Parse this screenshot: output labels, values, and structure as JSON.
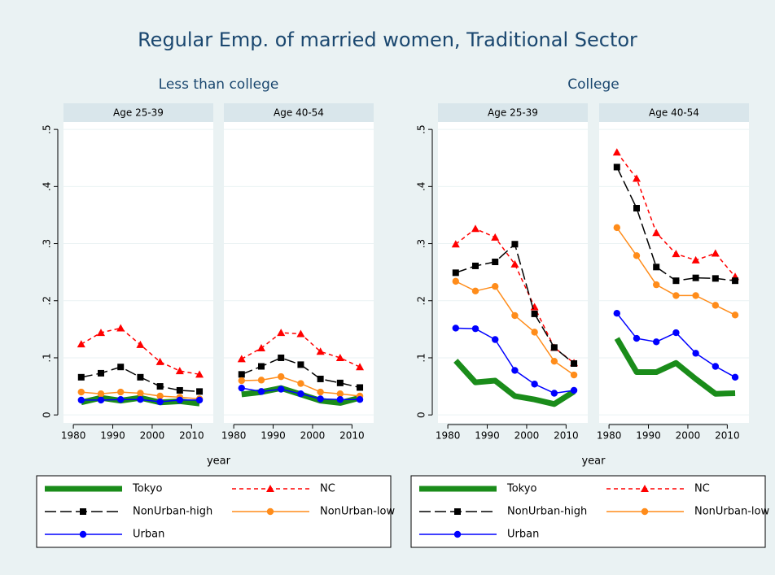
{
  "title": "Regular Emp. of married women, Traditional Sector",
  "groups": [
    {
      "title": "Less than college",
      "x_label": "year"
    },
    {
      "title": "College",
      "x_label": "year"
    }
  ],
  "chart_data": [
    {
      "type": "line",
      "title": "Age 25-39",
      "x": [
        1982,
        1987,
        1992,
        1997,
        2002,
        2007,
        2012
      ],
      "xlim": [
        1977.5,
        2015.5
      ],
      "xticks": [
        1980,
        1990,
        2000,
        2010
      ],
      "ylim": [
        -0.014,
        0.513
      ],
      "yticks": [
        0,
        {
          "value": 0.1,
          "label": ".1"
        },
        {
          "value": 0.2,
          "label": ".2"
        },
        {
          "value": 0.3,
          "label": ".3"
        },
        {
          "value": 0.4,
          "label": ".4"
        },
        {
          "value": 0.5,
          "label": ".5"
        }
      ],
      "grid": true,
      "series": [
        {
          "name": "Tokyo",
          "color": "#1a8c1a",
          "values": [
            0.022,
            0.03,
            0.025,
            0.03,
            0.022,
            0.024,
            0.02
          ]
        },
        {
          "name": "NC",
          "color": "#ff0000",
          "values": [
            0.124,
            0.144,
            0.152,
            0.123,
            0.093,
            0.077,
            0.071
          ]
        },
        {
          "name": "NonUrban-high",
          "color": "#000000",
          "values": [
            0.066,
            0.073,
            0.084,
            0.066,
            0.05,
            0.043,
            0.041
          ]
        },
        {
          "name": "NonUrban-low",
          "color": "#ff8c1a",
          "values": [
            0.04,
            0.037,
            0.04,
            0.038,
            0.033,
            0.031,
            0.028
          ]
        },
        {
          "name": "Urban",
          "color": "#0000ff",
          "values": [
            0.026,
            0.026,
            0.027,
            0.027,
            0.023,
            0.026,
            0.026
          ]
        }
      ]
    },
    {
      "type": "line",
      "title": "Age 40-54",
      "x": [
        1982,
        1987,
        1992,
        1997,
        2002,
        2007,
        2012
      ],
      "xlim": [
        1977.5,
        2015.5
      ],
      "xticks": [
        1980,
        1990,
        2000,
        2010
      ],
      "ylim": [
        -0.014,
        0.513
      ],
      "yticks": [
        0,
        {
          "value": 0.1,
          "label": ".1"
        },
        {
          "value": 0.2,
          "label": ".2"
        },
        {
          "value": 0.3,
          "label": ".3"
        },
        {
          "value": 0.4,
          "label": ".4"
        },
        {
          "value": 0.5,
          "label": ".5"
        }
      ],
      "grid": true,
      "series": [
        {
          "name": "Tokyo",
          "color": "#1a8c1a",
          "values": [
            0.036,
            0.04,
            0.047,
            0.036,
            0.025,
            0.021,
            0.03
          ]
        },
        {
          "name": "NC",
          "color": "#ff0000",
          "values": [
            0.098,
            0.117,
            0.144,
            0.142,
            0.111,
            0.1,
            0.084
          ]
        },
        {
          "name": "NonUrban-high",
          "color": "#000000",
          "values": [
            0.071,
            0.085,
            0.1,
            0.088,
            0.063,
            0.056,
            0.048
          ]
        },
        {
          "name": "NonUrban-low",
          "color": "#ff8c1a",
          "values": [
            0.06,
            0.061,
            0.067,
            0.055,
            0.04,
            0.037,
            0.033
          ]
        },
        {
          "name": "Urban",
          "color": "#0000ff",
          "values": [
            0.047,
            0.041,
            0.045,
            0.037,
            0.028,
            0.027,
            0.027
          ]
        }
      ]
    },
    {
      "type": "line",
      "title": "Age 25-39",
      "x": [
        1982,
        1987,
        1992,
        1997,
        2002,
        2007,
        2012
      ],
      "xlim": [
        1977.5,
        2015.5
      ],
      "xticks": [
        1980,
        1990,
        2000,
        2010
      ],
      "ylim": [
        -0.014,
        0.513
      ],
      "yticks": [
        0,
        {
          "value": 0.1,
          "label": ".1"
        },
        {
          "value": 0.2,
          "label": ".2"
        },
        {
          "value": 0.3,
          "label": ".3"
        },
        {
          "value": 0.4,
          "label": ".4"
        },
        {
          "value": 0.5,
          "label": ".5"
        }
      ],
      "grid": true,
      "series": [
        {
          "name": "Tokyo",
          "color": "#1a8c1a",
          "values": [
            0.095,
            0.057,
            0.06,
            0.033,
            0.027,
            0.019,
            0.041
          ]
        },
        {
          "name": "NC",
          "color": "#ff0000",
          "values": [
            0.299,
            0.326,
            0.311,
            0.264,
            0.189,
            0.118,
            0.091
          ]
        },
        {
          "name": "NonUrban-high",
          "color": "#000000",
          "values": [
            0.249,
            0.261,
            0.268,
            0.299,
            0.177,
            0.118,
            0.09
          ]
        },
        {
          "name": "NonUrban-low",
          "color": "#ff8c1a",
          "values": [
            0.234,
            0.217,
            0.225,
            0.174,
            0.145,
            0.094,
            0.07
          ]
        },
        {
          "name": "Urban",
          "color": "#0000ff",
          "values": [
            0.152,
            0.151,
            0.132,
            0.078,
            0.054,
            0.038,
            0.043
          ]
        }
      ]
    },
    {
      "type": "line",
      "title": "Age 40-54",
      "x": [
        1982,
        1987,
        1992,
        1997,
        2002,
        2007,
        2012
      ],
      "xlim": [
        1977.5,
        2015.5
      ],
      "xticks": [
        1980,
        1990,
        2000,
        2010
      ],
      "ylim": [
        -0.014,
        0.513
      ],
      "yticks": [
        0,
        {
          "value": 0.1,
          "label": ".1"
        },
        {
          "value": 0.2,
          "label": ".2"
        },
        {
          "value": 0.3,
          "label": ".3"
        },
        {
          "value": 0.4,
          "label": ".4"
        },
        {
          "value": 0.5,
          "label": ".5"
        }
      ],
      "grid": true,
      "series": [
        {
          "name": "Tokyo",
          "color": "#1a8c1a",
          "values": [
            0.134,
            0.075,
            0.075,
            0.091,
            0.063,
            0.037,
            0.038
          ]
        },
        {
          "name": "NC",
          "color": "#ff0000",
          "values": [
            0.46,
            0.414,
            0.319,
            0.282,
            0.271,
            0.283,
            0.242
          ]
        },
        {
          "name": "NonUrban-high",
          "color": "#000000",
          "values": [
            0.434,
            0.362,
            0.259,
            0.235,
            0.24,
            0.239,
            0.235
          ]
        },
        {
          "name": "NonUrban-low",
          "color": "#ff8c1a",
          "values": [
            0.328,
            0.279,
            0.228,
            0.209,
            0.209,
            0.192,
            0.175
          ]
        },
        {
          "name": "Urban",
          "color": "#0000ff",
          "values": [
            0.178,
            0.134,
            0.128,
            0.144,
            0.108,
            0.085,
            0.066
          ]
        }
      ]
    }
  ]
}
